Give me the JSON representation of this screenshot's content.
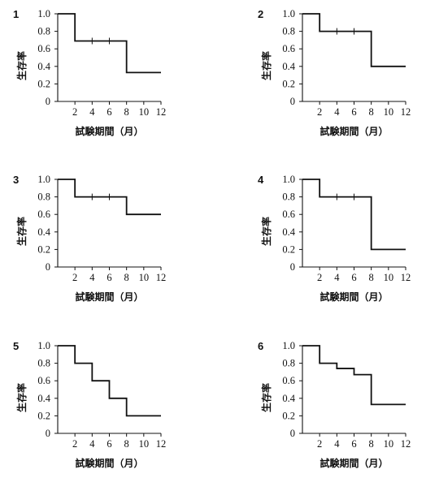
{
  "chart_data": [
    {
      "panel_label": "1",
      "type": "line",
      "step": "post",
      "xlabel": "試験期間（月）",
      "ylabel": "生存率",
      "xlim": [
        0,
        12
      ],
      "ylim": [
        0,
        1.0
      ],
      "x_ticks": [
        "2",
        "4",
        "6",
        "8",
        "10",
        "12"
      ],
      "y_ticks": [
        "0",
        "0.2",
        "0.4",
        "0.6",
        "0.8",
        "1.0"
      ],
      "x": [
        0,
        2,
        8,
        12
      ],
      "y": [
        1.0,
        0.69,
        0.33,
        0.33
      ],
      "censored": [
        {
          "x": 4,
          "y": 0.69
        },
        {
          "x": 6,
          "y": 0.69
        }
      ]
    },
    {
      "panel_label": "2",
      "type": "line",
      "step": "post",
      "xlabel": "試験期間（月）",
      "ylabel": "生存率",
      "xlim": [
        0,
        12
      ],
      "ylim": [
        0,
        1.0
      ],
      "x_ticks": [
        "2",
        "4",
        "6",
        "8",
        "10",
        "12"
      ],
      "y_ticks": [
        "0",
        "0.2",
        "0.4",
        "0.6",
        "0.8",
        "1.0"
      ],
      "x": [
        0,
        2,
        8,
        12
      ],
      "y": [
        1.0,
        0.8,
        0.4,
        0.4
      ],
      "censored": [
        {
          "x": 4,
          "y": 0.8
        },
        {
          "x": 6,
          "y": 0.8
        }
      ]
    },
    {
      "panel_label": "3",
      "type": "line",
      "step": "post",
      "xlabel": "試験期間（月）",
      "ylabel": "生存率",
      "xlim": [
        0,
        12
      ],
      "ylim": [
        0,
        1.0
      ],
      "x_ticks": [
        "2",
        "4",
        "6",
        "8",
        "10",
        "12"
      ],
      "y_ticks": [
        "0",
        "0.2",
        "0.4",
        "0.6",
        "0.8",
        "1.0"
      ],
      "x": [
        0,
        2,
        8,
        12
      ],
      "y": [
        1.0,
        0.8,
        0.6,
        0.6
      ],
      "censored": [
        {
          "x": 4,
          "y": 0.8
        },
        {
          "x": 6,
          "y": 0.8
        }
      ]
    },
    {
      "panel_label": "4",
      "type": "line",
      "step": "post",
      "xlabel": "試験期間（月）",
      "ylabel": "生存率",
      "xlim": [
        0,
        12
      ],
      "ylim": [
        0,
        1.0
      ],
      "x_ticks": [
        "2",
        "4",
        "6",
        "8",
        "10",
        "12"
      ],
      "y_ticks": [
        "0",
        "0.2",
        "0.4",
        "0.6",
        "0.8",
        "1.0"
      ],
      "x": [
        0,
        2,
        8,
        12
      ],
      "y": [
        1.0,
        0.8,
        0.2,
        0.2
      ],
      "censored": [
        {
          "x": 4,
          "y": 0.8
        },
        {
          "x": 6,
          "y": 0.8
        }
      ]
    },
    {
      "panel_label": "5",
      "type": "line",
      "step": "post",
      "xlabel": "試験期間（月）",
      "ylabel": "生存率",
      "xlim": [
        0,
        12
      ],
      "ylim": [
        0,
        1.0
      ],
      "x_ticks": [
        "2",
        "4",
        "6",
        "8",
        "10",
        "12"
      ],
      "y_ticks": [
        "0",
        "0.2",
        "0.4",
        "0.6",
        "0.8",
        "1.0"
      ],
      "x": [
        0,
        2,
        4,
        6,
        8,
        12
      ],
      "y": [
        1.0,
        0.8,
        0.6,
        0.4,
        0.2,
        0.2
      ],
      "censored": []
    },
    {
      "panel_label": "6",
      "type": "line",
      "step": "post",
      "xlabel": "試験期間（月）",
      "ylabel": "生存率",
      "xlim": [
        0,
        12
      ],
      "ylim": [
        0,
        1.0
      ],
      "x_ticks": [
        "2",
        "4",
        "6",
        "8",
        "10",
        "12"
      ],
      "y_ticks": [
        "0",
        "0.2",
        "0.4",
        "0.6",
        "0.8",
        "1.0"
      ],
      "x": [
        0,
        2,
        4,
        6,
        8,
        12
      ],
      "y": [
        1.0,
        0.8,
        0.74,
        0.67,
        0.33,
        0.33
      ],
      "censored": []
    }
  ]
}
